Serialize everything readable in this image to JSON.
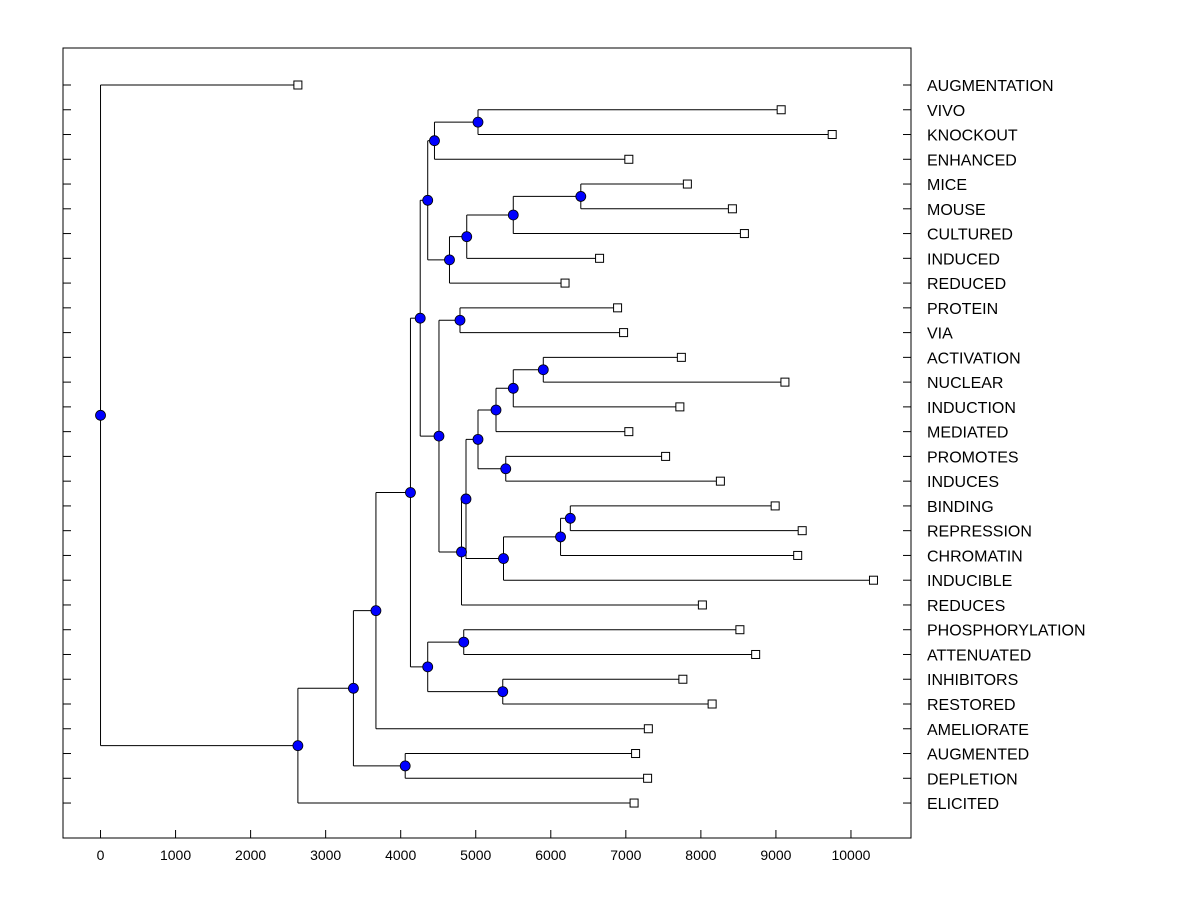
{
  "chart_data": {
    "type": "dendrogram",
    "title": "",
    "xlabel": "",
    "ylabel": "",
    "xlim": [
      -500,
      10800
    ],
    "x_ticks": [
      0,
      1000,
      2000,
      3000,
      4000,
      5000,
      6000,
      7000,
      8000,
      9000,
      10000
    ],
    "tick_labels": [
      "0",
      "1000",
      "2000",
      "3000",
      "4000",
      "5000",
      "6000",
      "7000",
      "8000",
      "9000",
      "10000"
    ],
    "colors": {
      "node_fill": "#0000ff",
      "node_stroke": "#000000",
      "leaf_fill": "#ffffff",
      "line": "#000000"
    },
    "leaves": [
      {
        "label": "AUGMENTATION",
        "value": 2630
      },
      {
        "label": "VIVO",
        "value": 9070
      },
      {
        "label": "KNOCKOUT",
        "value": 9750
      },
      {
        "label": "ENHANCED",
        "value": 7040
      },
      {
        "label": "MICE",
        "value": 7820
      },
      {
        "label": "MOUSE",
        "value": 8420
      },
      {
        "label": "CULTURED",
        "value": 8580
      },
      {
        "label": "INDUCED",
        "value": 6650
      },
      {
        "label": "REDUCED",
        "value": 6190
      },
      {
        "label": "PROTEIN",
        "value": 6890
      },
      {
        "label": "VIA",
        "value": 6970
      },
      {
        "label": "ACTIVATION",
        "value": 7740
      },
      {
        "label": "NUCLEAR",
        "value": 9120
      },
      {
        "label": "INDUCTION",
        "value": 7720
      },
      {
        "label": "MEDIATED",
        "value": 7040
      },
      {
        "label": "PROMOTES",
        "value": 7530
      },
      {
        "label": "INDUCES",
        "value": 8260
      },
      {
        "label": "BINDING",
        "value": 8990
      },
      {
        "label": "REPRESSION",
        "value": 9350
      },
      {
        "label": "CHROMATIN",
        "value": 9290
      },
      {
        "label": "INDUCIBLE",
        "value": 10300
      },
      {
        "label": "REDUCES",
        "value": 8020
      },
      {
        "label": "PHOSPHORYLATION",
        "value": 8520
      },
      {
        "label": "ATTENUATED",
        "value": 8730
      },
      {
        "label": "INHIBITORS",
        "value": 7760
      },
      {
        "label": "RESTORED",
        "value": 8150
      },
      {
        "label": "AMELIORATE",
        "value": 7300
      },
      {
        "label": "AUGMENTED",
        "value": 7130
      },
      {
        "label": "DEPLETION",
        "value": 7290
      },
      {
        "label": "ELICITED",
        "value": 7110
      }
    ],
    "merges": [
      {
        "id": "n1",
        "value": 5030,
        "children": [
          1,
          2
        ]
      },
      {
        "id": "n2",
        "value": 4450,
        "children": [
          "n1",
          3
        ]
      },
      {
        "id": "n3",
        "value": 6400,
        "children": [
          4,
          5
        ]
      },
      {
        "id": "n4",
        "value": 5500,
        "children": [
          "n3",
          6
        ]
      },
      {
        "id": "n5",
        "value": 4880,
        "children": [
          "n4",
          7
        ]
      },
      {
        "id": "n6",
        "value": 4650,
        "children": [
          "n5",
          8
        ]
      },
      {
        "id": "n7",
        "value": 4360,
        "children": [
          "n2",
          "n6"
        ]
      },
      {
        "id": "n8",
        "value": 4790,
        "children": [
          9,
          10
        ]
      },
      {
        "id": "n9",
        "value": 5900,
        "children": [
          11,
          12
        ]
      },
      {
        "id": "n10",
        "value": 5500,
        "children": [
          "n9",
          13
        ]
      },
      {
        "id": "n11",
        "value": 5270,
        "children": [
          "n10",
          14
        ]
      },
      {
        "id": "n12",
        "value": 5400,
        "children": [
          15,
          16
        ]
      },
      {
        "id": "n13",
        "value": 5030,
        "children": [
          "n11",
          "n12"
        ]
      },
      {
        "id": "n14",
        "value": 6260,
        "children": [
          17,
          18
        ]
      },
      {
        "id": "n15",
        "value": 6130,
        "children": [
          "n14",
          19
        ]
      },
      {
        "id": "n16",
        "value": 5370,
        "children": [
          "n15",
          20
        ]
      },
      {
        "id": "n17",
        "value": 4870,
        "children": [
          "n13",
          "n16"
        ]
      },
      {
        "id": "n18",
        "value": 4810,
        "children": [
          "n17",
          21
        ]
      },
      {
        "id": "n19",
        "value": 4510,
        "children": [
          "n8",
          "n18"
        ]
      },
      {
        "id": "n20",
        "value": 4260,
        "children": [
          "n7",
          "n19"
        ]
      },
      {
        "id": "n21",
        "value": 4840,
        "children": [
          22,
          23
        ]
      },
      {
        "id": "n22",
        "value": 5360,
        "children": [
          24,
          25
        ]
      },
      {
        "id": "n23",
        "value": 4360,
        "children": [
          "n21",
          "n22"
        ]
      },
      {
        "id": "n24",
        "value": 4130,
        "children": [
          "n20",
          "n23"
        ]
      },
      {
        "id": "n25",
        "value": 3670,
        "children": [
          "n24",
          26
        ]
      },
      {
        "id": "n26",
        "value": 4060,
        "children": [
          27,
          28
        ]
      },
      {
        "id": "n27",
        "value": 3370,
        "children": [
          "n25",
          "n26"
        ]
      },
      {
        "id": "n28",
        "value": 2630,
        "children": [
          "n27",
          29
        ]
      },
      {
        "id": "n29",
        "value": 0,
        "children": [
          0,
          "n28"
        ]
      }
    ]
  }
}
